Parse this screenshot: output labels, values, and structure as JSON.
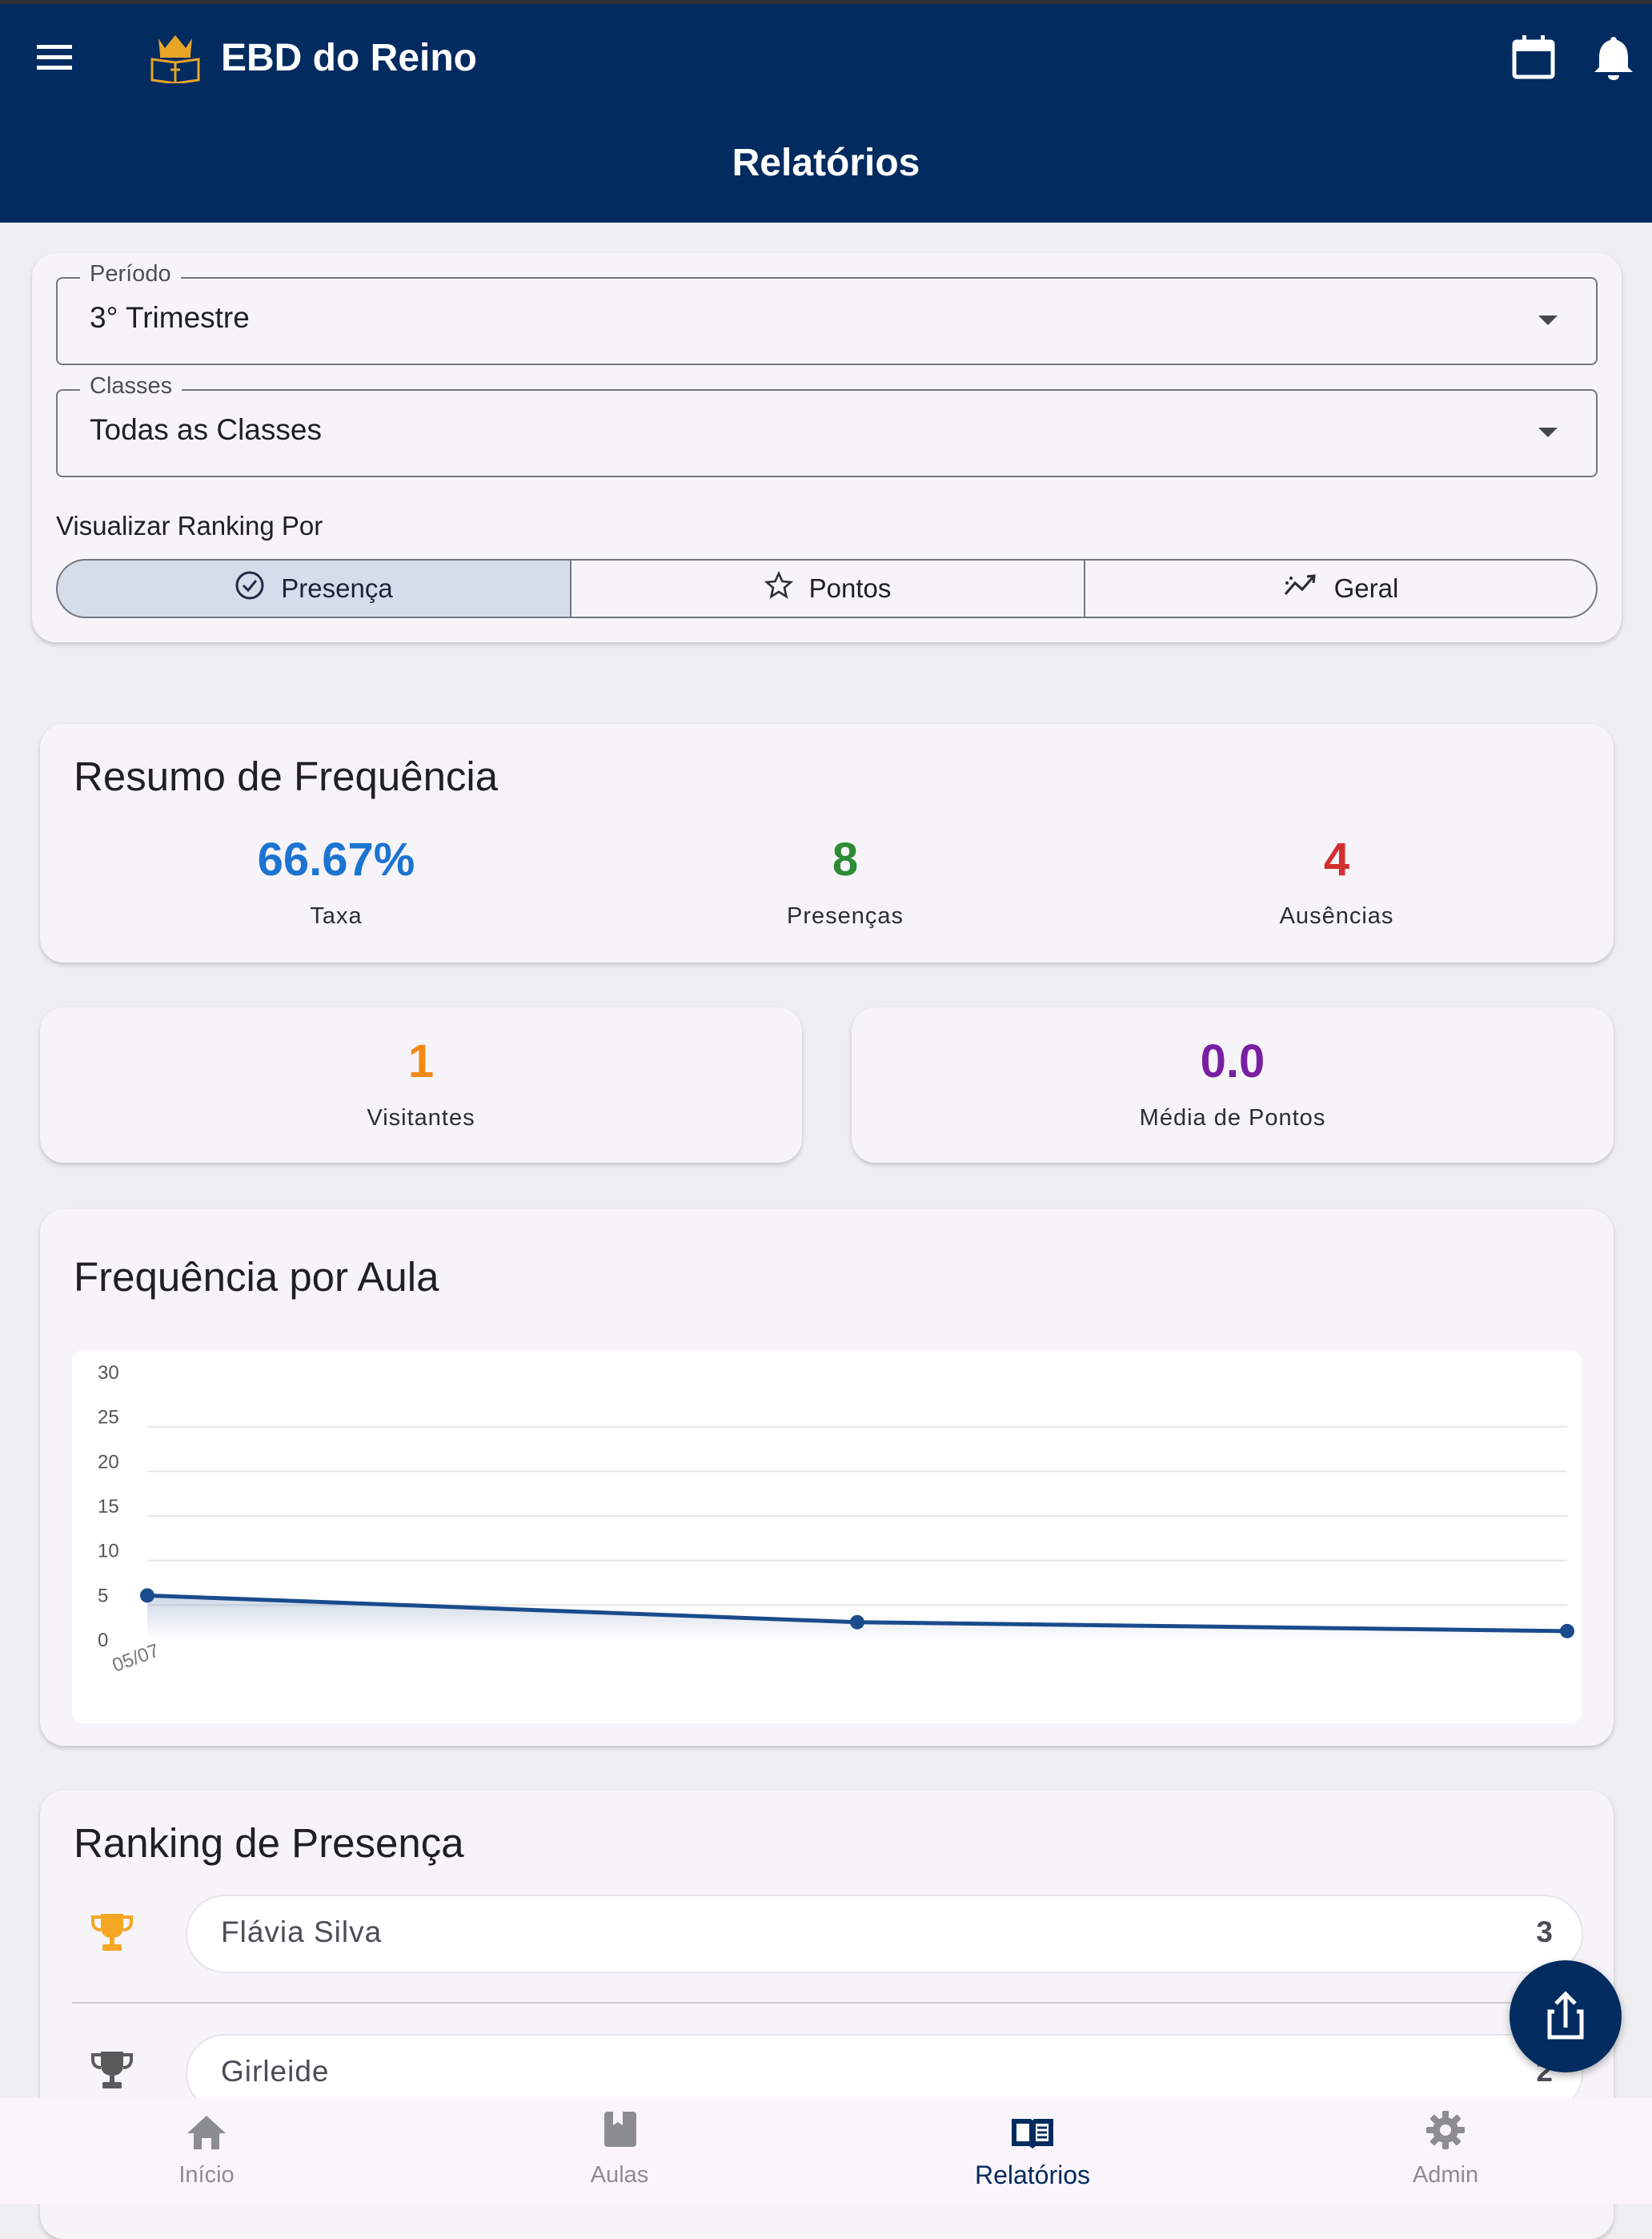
{
  "app": {
    "name": "EBD do Reino",
    "page_title": "Relatórios"
  },
  "filters": {
    "period_label": "Período",
    "period_value": "3° Trimestre",
    "classes_label": "Classes",
    "classes_value": "Todas as Classes",
    "ranking_label": "Visualizar Ranking Por",
    "segments": [
      {
        "label": "Presença",
        "icon": "check-circle-icon",
        "selected": true
      },
      {
        "label": "Pontos",
        "icon": "star-outline-icon",
        "selected": false
      },
      {
        "label": "Geral",
        "icon": "trending-icon",
        "selected": false
      }
    ]
  },
  "summary": {
    "title": "Resumo de Frequência",
    "rate_value": "66.67%",
    "rate_label": "Taxa",
    "presences_value": "8",
    "presences_label": "Presenças",
    "absences_value": "4",
    "absences_label": "Ausências",
    "colors": {
      "rate": "#1c74d1",
      "presences": "#2e8b35",
      "absences": "#d32f2f"
    }
  },
  "visitors": {
    "value": "1",
    "label": "Visitantes",
    "color": "#f28a14"
  },
  "avg_points": {
    "value": "0.0",
    "label": "Média de Pontos",
    "color": "#7a1fa2"
  },
  "frequency": {
    "title": "Frequência por Aula"
  },
  "chart_data": {
    "type": "area",
    "x": [
      "05/07",
      "",
      ""
    ],
    "x_tick_labels": [
      "05/07"
    ],
    "series": [
      {
        "values": [
          5,
          2,
          1
        ]
      }
    ],
    "y_ticks": [
      "30",
      "25",
      "20",
      "15",
      "10",
      "5",
      "0"
    ],
    "ylim": [
      0,
      30
    ],
    "grid": true,
    "line_color": "#1a4b8c"
  },
  "ranking": {
    "title": "Ranking de Presença",
    "items": [
      {
        "name": "Flávia Silva",
        "value": "3",
        "trophy_color": "#f5a623"
      },
      {
        "name": "Girleide",
        "value": "2",
        "trophy_color": "#5a5a5a"
      }
    ]
  },
  "bottom_nav": [
    {
      "label": "Início",
      "icon": "home-icon",
      "active": false
    },
    {
      "label": "Aulas",
      "icon": "book-icon",
      "active": false
    },
    {
      "label": "Relatórios",
      "icon": "open-book-icon",
      "active": true
    },
    {
      "label": "Admin",
      "icon": "gear-icon",
      "active": false
    }
  ]
}
